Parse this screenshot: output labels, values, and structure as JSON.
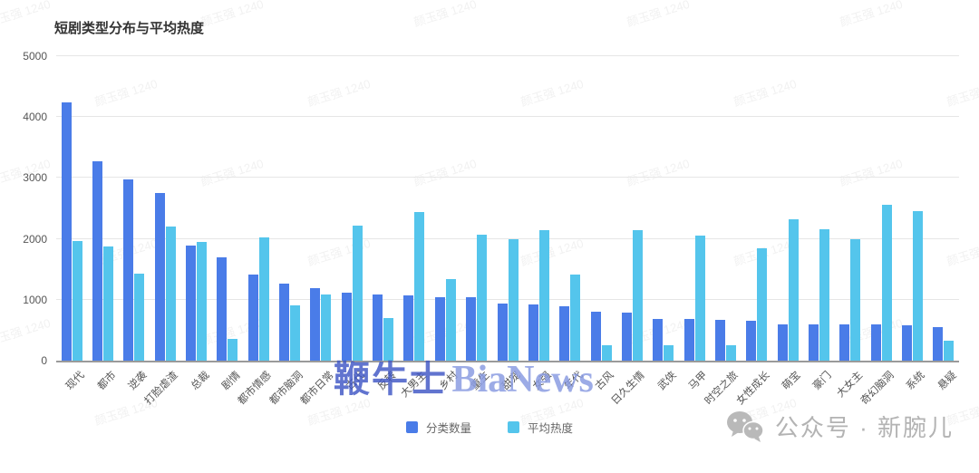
{
  "title": "短剧类型分布与平均热度",
  "legend": {
    "items": [
      {
        "label": "分类数量",
        "color": "#4a7ce8"
      },
      {
        "label": "平均热度",
        "color": "#54c5ec"
      }
    ]
  },
  "watermarks": {
    "center_cn": "鞭牛士",
    "center_en": "BiaNews",
    "tiled": "颜玉强 1240"
  },
  "footer": {
    "wechat_label": "公众号 · 新腕儿",
    "wechat_icon": "wechat-icon"
  },
  "colors": {
    "primary": "#4a7ce8",
    "secondary": "#54c5ec",
    "grid": "#e6e6e6",
    "axis_line": "#9a9a9a",
    "text": "#555555",
    "brand_gray": "#b3b3b3"
  },
  "chart_data": {
    "type": "bar",
    "title": "短剧类型分布与平均热度",
    "xlabel": "",
    "ylabel": "",
    "ylim": [
      0,
      5000
    ],
    "yticks": [
      0,
      1000,
      2000,
      3000,
      4000,
      5000
    ],
    "grid": true,
    "legend_position": "bottom",
    "categories": [
      "现代",
      "都市",
      "逆袭",
      "打脸虐渣",
      "总裁",
      "剧情",
      "都市情感",
      "都市脑洞",
      "都市日常",
      "古代",
      "反转",
      "大男主",
      "乡村",
      "重生",
      "甜宠",
      "女强",
      "年代",
      "古风",
      "日久生情",
      "武侠",
      "马甲",
      "时空之旅",
      "女性成长",
      "萌宝",
      "豪门",
      "大女主",
      "奇幻脑洞",
      "系统",
      "悬疑"
    ],
    "series": [
      {
        "name": "分类数量",
        "color": "#4a7ce8",
        "values": [
          4240,
          3270,
          2980,
          2760,
          1890,
          1700,
          1410,
          1270,
          1190,
          1120,
          1090,
          1070,
          1040,
          1040,
          940,
          920,
          890,
          800,
          790,
          690,
          680,
          670,
          660,
          600,
          600,
          600,
          600,
          580,
          550
        ]
      },
      {
        "name": "平均热度",
        "color": "#54c5ec",
        "values": [
          1960,
          1870,
          1430,
          2210,
          1950,
          360,
          2020,
          910,
          1090,
          2220,
          700,
          2440,
          1340,
          2070,
          2000,
          2140,
          1410,
          250,
          2140,
          250,
          2050,
          250,
          1840,
          2320,
          2160,
          2000,
          2560,
          2450,
          330
        ]
      }
    ]
  }
}
